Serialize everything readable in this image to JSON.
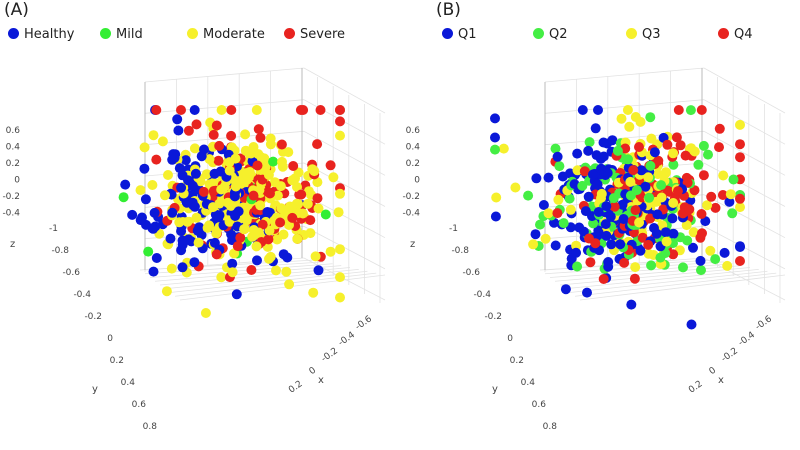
{
  "chart_data": [
    {
      "type": "scatter",
      "panel_label": "(A)",
      "legend": [
        {
          "name": "Healthy",
          "color": "#0a18d8"
        },
        {
          "name": "Mild",
          "color": "#33ee33"
        },
        {
          "name": "Moderate",
          "color": "#f6f02c"
        },
        {
          "name": "Severe",
          "color": "#e8231f"
        }
      ],
      "axes": {
        "x": {
          "title": "x",
          "ticks": [
            "-0.6",
            "-0.4",
            "-0.2",
            "0",
            "0.2"
          ]
        },
        "y": {
          "title": "y",
          "ticks": [
            "-1",
            "-0.8",
            "-0.6",
            "-0.4",
            "-0.2",
            "0",
            "0.2",
            "0.4",
            "0.6",
            "0.8"
          ]
        },
        "z": {
          "title": "z",
          "ticks": [
            "-0.4",
            "-0.2",
            "0",
            "0.2",
            "0.4",
            "0.6"
          ]
        }
      },
      "grid": true,
      "legend_position": "top"
    },
    {
      "type": "scatter",
      "panel_label": "(B)",
      "legend": [
        {
          "name": "Q1",
          "color": "#0a18d8"
        },
        {
          "name": "Q2",
          "color": "#44ee44"
        },
        {
          "name": "Q3",
          "color": "#f6f02c"
        },
        {
          "name": "Q4",
          "color": "#e8231f"
        }
      ],
      "axes": {
        "x": {
          "title": "x",
          "ticks": [
            "-0.6",
            "-0.4",
            "-0.2",
            "0",
            "0.2"
          ]
        },
        "y": {
          "title": "y",
          "ticks": [
            "-1",
            "-0.8",
            "-0.6",
            "-0.4",
            "-0.2",
            "0",
            "0.2",
            "0.4",
            "0.6",
            "0.8"
          ]
        },
        "z": {
          "title": "z",
          "ticks": [
            "-0.4",
            "-0.2",
            "0",
            "0.2",
            "0.4",
            "0.6"
          ]
        }
      },
      "grid": true,
      "legend_position": "top"
    }
  ]
}
